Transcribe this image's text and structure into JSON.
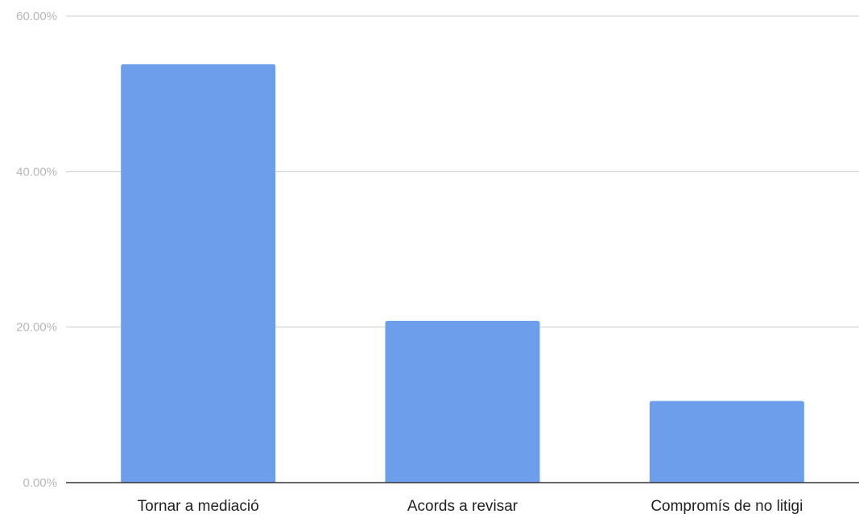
{
  "chart_data": {
    "type": "bar",
    "categories": [
      "Tornar a mediació",
      "Acords a revisar",
      "Compromís de no litigi"
    ],
    "series": [
      {
        "values": [
          53.8,
          20.8,
          10.5
        ]
      }
    ],
    "ylim": [
      0,
      60
    ],
    "y_ticks": [
      0,
      20,
      40,
      60
    ],
    "y_tick_labels": [
      "0.00%",
      "20.00%",
      "40.00%",
      "60.00%"
    ],
    "grid": true,
    "legend": "none",
    "colors": {
      "bar": "#6d9eeb",
      "grid": "#cccccc",
      "baseline": "#333333"
    }
  }
}
